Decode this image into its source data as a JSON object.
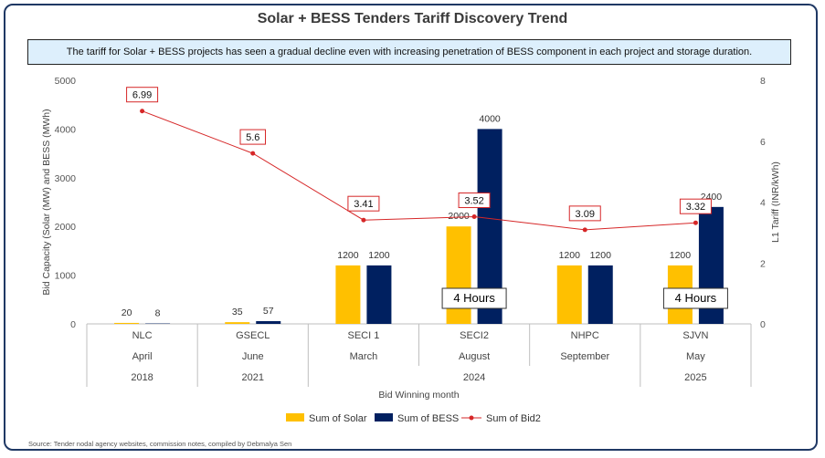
{
  "title": "Solar + BESS Tenders Tariff Discovery Trend",
  "banner": "The tariff for Solar + BESS projects has seen a gradual decline even with increasing penetration of BESS component in each project and storage duration.",
  "source": "Source: Tender nodal agency websites, commission notes, compiled by Debmalya Sen",
  "chart_data": {
    "type": "bar",
    "categories": [
      "NLC",
      "GSECL",
      "SECI 1",
      "SECI2",
      "NHPC",
      "SJVN"
    ],
    "months": [
      "April",
      "June",
      "March",
      "August",
      "September",
      "May"
    ],
    "year_groups": [
      {
        "label": "2018",
        "start": 0,
        "end": 0
      },
      {
        "label": "2021",
        "start": 1,
        "end": 1
      },
      {
        "label": "2024",
        "start": 2,
        "end": 4
      },
      {
        "label": "2025",
        "start": 5,
        "end": 5
      }
    ],
    "series": [
      {
        "name": "Sum of Solar",
        "type": "bar",
        "axis": "left",
        "color": "#ffc000",
        "values": [
          20,
          35,
          1200,
          2000,
          1200,
          1200
        ]
      },
      {
        "name": "Sum of BESS",
        "type": "bar",
        "axis": "left",
        "color": "#002060",
        "values": [
          8,
          57,
          1200,
          4000,
          1200,
          2400
        ]
      },
      {
        "name": "Sum of Bid2",
        "type": "line",
        "axis": "right",
        "color": "#d62728",
        "values": [
          6.99,
          5.6,
          3.41,
          3.52,
          3.09,
          3.32
        ]
      }
    ],
    "annotations": [
      {
        "category": "SECI2",
        "text": "4 Hours"
      },
      {
        "category": "SJVN",
        "text": "4 Hours"
      }
    ],
    "xlabel": "Bid Winning month",
    "ylabel": "Bid Capacity (Solar (MW) and BESS (MWh)",
    "y2label": "L1 Tariff (INR/kWh)",
    "ylim": [
      0,
      5000
    ],
    "yticks": [
      0,
      1000,
      2000,
      3000,
      4000,
      5000
    ],
    "y2lim": [
      0,
      8
    ],
    "y2ticks": [
      0,
      2,
      4,
      6,
      8
    ],
    "legend_position": "bottom",
    "grid": false
  }
}
